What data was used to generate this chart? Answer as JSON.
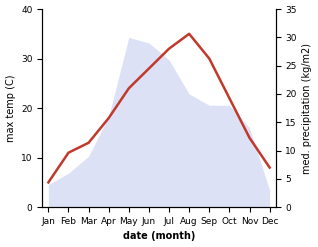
{
  "months": [
    "Jan",
    "Feb",
    "Mar",
    "Apr",
    "May",
    "Jun",
    "Jul",
    "Aug",
    "Sep",
    "Oct",
    "Nov",
    "Dec"
  ],
  "max_temp": [
    5,
    11,
    13,
    18,
    24,
    28,
    32,
    35,
    30,
    22,
    14,
    8
  ],
  "precipitation": [
    4,
    6,
    9,
    16,
    30,
    29,
    26,
    20,
    18,
    18,
    14,
    3
  ],
  "temp_color": "#c0392b",
  "precip_fill_color": "#c5cdf0",
  "left_ylim": [
    0,
    40
  ],
  "right_ylim": [
    0,
    35
  ],
  "left_yticks": [
    0,
    10,
    20,
    30,
    40
  ],
  "right_yticks": [
    0,
    5,
    10,
    15,
    20,
    25,
    30,
    35
  ],
  "xlabel": "date (month)",
  "ylabel_left": "max temp (C)",
  "ylabel_right": "med. precipitation (kg/m2)",
  "label_fontsize": 7,
  "tick_fontsize": 6.5
}
